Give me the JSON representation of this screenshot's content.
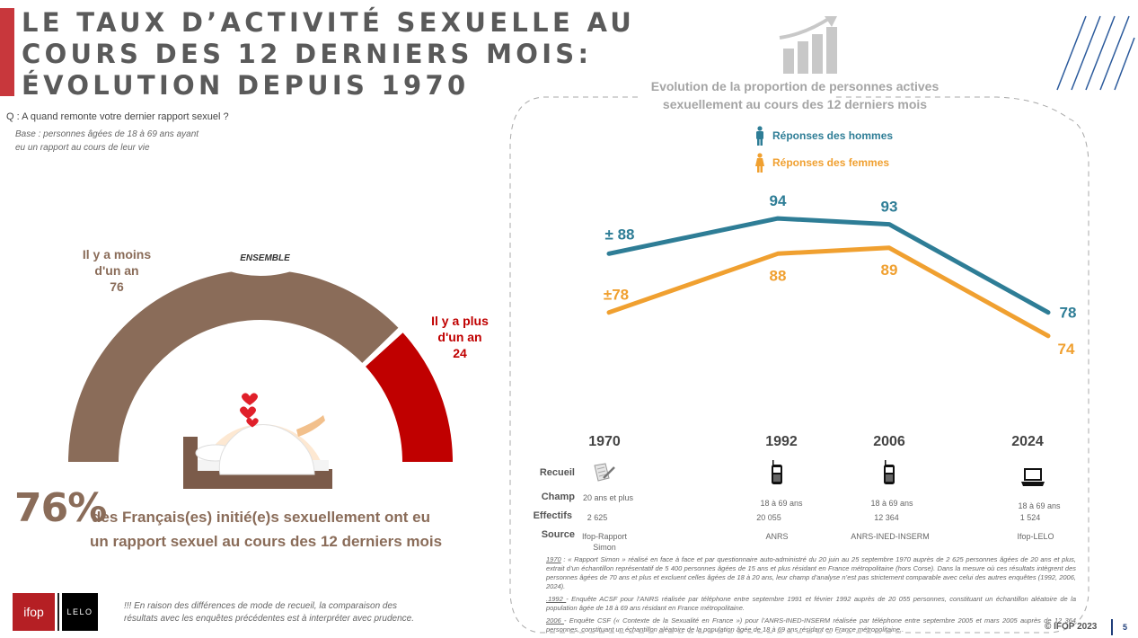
{
  "header": {
    "title_lines": [
      "LE TAUX D’ACTIVITÉ SEXUELLE AU",
      "COURS DES 12 DERNIERS MOIS:",
      "ÉVOLUTION DEPUIS 1970"
    ],
    "question": "Q : A quand remonte votre dernier rapport sexuel ?",
    "base_lines": [
      "Base : personnes âgées de 18 à 69 ans ayant",
      "eu un rapport au cours de leur vie"
    ]
  },
  "colors": {
    "accent": "#c8373c",
    "brown": "#8a6c59",
    "red": "#c00000",
    "men": "#2e7d96",
    "women": "#f0a030",
    "page_number": "#1f3e7a"
  },
  "chart_data": [
    {
      "type": "pie",
      "subtype": "half-donut",
      "title": "ENSEMBLE",
      "categories": [
        "Il y a moins d'un an",
        "Il y a plus d'un an"
      ],
      "values": [
        76,
        24
      ],
      "labels": [
        {
          "lines": [
            "Il y a moins",
            "d'un an",
            "76"
          ]
        },
        {
          "lines": [
            "Il y a plus",
            "d'un an",
            "24"
          ]
        }
      ]
    },
    {
      "type": "line",
      "title": "Evolution de la proportion de personnes actives sexuellement au cours des 12 derniers mois",
      "x": [
        "1970",
        "1992",
        "2006",
        "2024"
      ],
      "series": [
        {
          "name": "Réponses des hommes",
          "values": [
            88,
            94,
            93,
            78
          ],
          "labels": [
            "± 88",
            "94",
            "93",
            "78"
          ]
        },
        {
          "name": "Réponses des femmes",
          "values": [
            78,
            88,
            89,
            74
          ],
          "labels": [
            "±78",
            "88",
            "89",
            "74"
          ]
        }
      ],
      "ylim": [
        70,
        96
      ],
      "grid": false,
      "legend": "top"
    }
  ],
  "gauge": {
    "center_label": "ENSEMBLE",
    "less": {
      "line1": "Il y a moins",
      "line2": "d'un an",
      "value": "76"
    },
    "more": {
      "line1": "Il y a plus",
      "line2": "d'un an",
      "value": "24"
    }
  },
  "headline": {
    "pct": "76%",
    "line1": "des Français(es) initié(e)s sexuellement ont eu",
    "line2": "un rapport sexuel au cours des 12 derniers mois"
  },
  "logos": {
    "ifop": "ifop",
    "lelo": "LELO"
  },
  "warning_lines": [
    "!!! En raison des différences de mode de recueil, la comparaison des",
    "résultats avec les enquêtes précédentes est à interpréter avec prudence."
  ],
  "chart_panel": {
    "title_lines": [
      "Evolution de la proportion de personnes actives",
      "sexuellement au cours des 12 derniers mois"
    ],
    "legend_men": "Réponses des hommes",
    "legend_women": "Réponses des femmes"
  },
  "survey_table": {
    "row_labels": {
      "recueil": "Recueil",
      "champ": "Champ",
      "effectifs": "Effectifs",
      "source": "Source"
    },
    "columns": [
      {
        "year": "1970",
        "recueil_icon": "paper-questionnaire-icon",
        "champ": "20 ans et plus",
        "effectifs": "2 625",
        "source_lines": [
          "Ifop-Rapport",
          "Simon"
        ]
      },
      {
        "year": "1992",
        "recueil_icon": "mobile-phone-icon",
        "champ": "18 à 69 ans",
        "effectifs": "20 055",
        "source_lines": [
          "ANRS"
        ]
      },
      {
        "year": "2006",
        "recueil_icon": "mobile-phone-icon",
        "champ": "18 à 69 ans",
        "effectifs": "12 364",
        "source_lines": [
          "ANRS-INED-INSERM"
        ]
      },
      {
        "year": "2024",
        "recueil_icon": "laptop-icon",
        "champ": "18 à 69 ans",
        "effectifs": "1 524",
        "source_lines": [
          "Ifop-LELO"
        ]
      }
    ]
  },
  "footnotes": [
    {
      "key": "1970",
      "text": " : « Rapport Simon » réalisé en face à face et par questionnaire auto-administré du 20 juin au 25 septembre 1970 auprès de 2 625 personnes âgées de 20 ans et plus, extrait d’un échantillon représentatif de 5 400 personnes âgées de 15 ans et plus résidant en France métropolitaine (hors Corse). Dans la mesure où ces résultats intègrent des personnes âgées de 70 ans et plus et excluent celles âgées de 18 à 20 ans, leur champ d’analyse n’est pas strictement comparable avec celui des autres enquêtes (1992, 2006, 2024)."
    },
    {
      "key": ".1992 ",
      "text": "- Enquête ACSF pour l’ANRS réalisée par téléphone entre septembre 1991 et février 1992 auprès de 20 055 personnes, constituant un échantillon aléatoire de la population âgée de 18 à 69 ans résidant en France métropolitaine."
    },
    {
      "key": "2006 ",
      "text": "- Enquête CSF (« Contexte de la Sexualité en France ») pour l’ANRS-INED-INSERM réalisée par téléphone entre septembre 2005 et mars 2005 auprès de 12 364 personnes, constituant un échantillon aléatoire de la population âgée de 18 à 69 ans résidant en France métropolitaine.."
    }
  ],
  "footer": {
    "copyright": "© IFOP 2023",
    "page_number": "5"
  }
}
